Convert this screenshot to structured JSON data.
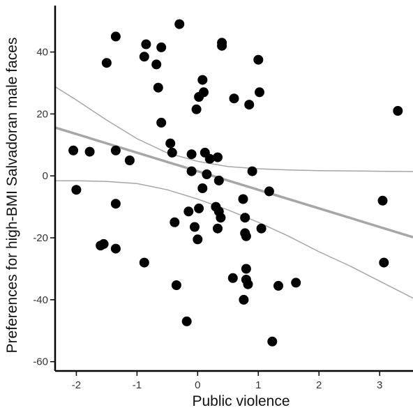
{
  "chart_data": {
    "type": "scatter",
    "title": "",
    "xlabel": "Public violence",
    "ylabel": "Preferences for high-BMI Salvadoran male faces",
    "xlim": [
      -2.35,
      3.55
    ],
    "ylim": [
      -63,
      55
    ],
    "xticks": [
      -2,
      -1,
      0,
      1,
      2,
      3
    ],
    "yticks": [
      -60,
      -40,
      -20,
      0,
      20,
      40
    ],
    "xtick_labels": [
      "-2",
      "-1",
      "0",
      "1",
      "2",
      "3"
    ],
    "ytick_labels": [
      "-60",
      "-40",
      "-20",
      "0",
      "20",
      "40"
    ],
    "grid": false,
    "legend": "none",
    "colors": {
      "points": "#000000",
      "fit_line": "#a6a6a6",
      "ci_band": "#a6a6a6",
      "axis": "#000000"
    },
    "fit_line": {
      "slope": -6.0,
      "intercept": 1.5
    },
    "ci_upper": [
      [
        -2.35,
        28.8
      ],
      [
        -2.0,
        24.5
      ],
      [
        -1.5,
        18.0
      ],
      [
        -1.0,
        12.0
      ],
      [
        -0.5,
        7.4
      ],
      [
        0.0,
        4.7
      ],
      [
        0.5,
        3.0
      ],
      [
        1.0,
        2.3
      ],
      [
        1.5,
        1.9
      ],
      [
        2.0,
        1.7
      ],
      [
        2.5,
        1.6
      ],
      [
        3.0,
        1.5
      ],
      [
        3.55,
        1.4
      ]
    ],
    "ci_lower": [
      [
        -2.35,
        -1.6
      ],
      [
        -2.0,
        -1.6
      ],
      [
        -1.5,
        -1.8
      ],
      [
        -1.0,
        -2.5
      ],
      [
        -0.5,
        -4.5
      ],
      [
        0.0,
        -7.5
      ],
      [
        0.5,
        -11.0
      ],
      [
        1.0,
        -15.0
      ],
      [
        1.5,
        -19.5
      ],
      [
        2.0,
        -24.5
      ],
      [
        2.5,
        -29.0
      ],
      [
        3.0,
        -34.0
      ],
      [
        3.55,
        -39.5
      ]
    ],
    "points": [
      [
        -0.3,
        49
      ],
      [
        -1.35,
        45
      ],
      [
        -0.85,
        42.5
      ],
      [
        -0.6,
        41.5
      ],
      [
        0.4,
        43
      ],
      [
        0.4,
        42
      ],
      [
        -0.88,
        38.5
      ],
      [
        -0.68,
        36
      ],
      [
        -1.5,
        36.5
      ],
      [
        1.0,
        37.5
      ],
      [
        0.08,
        31
      ],
      [
        -0.65,
        28.5
      ],
      [
        0.1,
        27
      ],
      [
        0.02,
        25.5
      ],
      [
        1.02,
        27
      ],
      [
        0.6,
        25
      ],
      [
        0.85,
        23
      ],
      [
        -0.02,
        21.5
      ],
      [
        3.3,
        21
      ],
      [
        -0.6,
        17.2
      ],
      [
        -0.45,
        10.5
      ],
      [
        -2.05,
        8.2
      ],
      [
        -1.78,
        7.8
      ],
      [
        -1.35,
        8.2
      ],
      [
        -0.42,
        7.5
      ],
      [
        -0.1,
        7
      ],
      [
        0.12,
        7.5
      ],
      [
        0.2,
        5.5
      ],
      [
        0.33,
        6
      ],
      [
        -1.12,
        5
      ],
      [
        0.9,
        1.5
      ],
      [
        -0.1,
        1.5
      ],
      [
        0.15,
        0.5
      ],
      [
        0.35,
        -1.5
      ],
      [
        0.08,
        -4
      ],
      [
        1.18,
        -5
      ],
      [
        -2.0,
        -4.5
      ],
      [
        0.75,
        -7.5
      ],
      [
        3.05,
        -8
      ],
      [
        -1.35,
        -9
      ],
      [
        0.3,
        -10
      ],
      [
        0.35,
        -11.5
      ],
      [
        0.02,
        -10.5
      ],
      [
        -0.15,
        -11.5
      ],
      [
        0.38,
        -13.5
      ],
      [
        0.78,
        -13.5
      ],
      [
        -0.38,
        -15
      ],
      [
        -0.05,
        -16.5
      ],
      [
        0.33,
        -17
      ],
      [
        1.05,
        -17
      ],
      [
        0.78,
        -18.5
      ],
      [
        0.8,
        -19.5
      ],
      [
        0.0,
        -20.5
      ],
      [
        -1.55,
        -22
      ],
      [
        -1.6,
        -22.5
      ],
      [
        -1.35,
        -23.5
      ],
      [
        -0.88,
        -28
      ],
      [
        3.07,
        -28
      ],
      [
        0.8,
        -30
      ],
      [
        0.58,
        -33
      ],
      [
        0.8,
        -33.5
      ],
      [
        0.83,
        -35
      ],
      [
        -0.35,
        -35.3
      ],
      [
        1.62,
        -34.5
      ],
      [
        1.33,
        -35.5
      ],
      [
        0.76,
        -40
      ],
      [
        -0.18,
        -47
      ],
      [
        1.23,
        -53.5
      ]
    ]
  }
}
